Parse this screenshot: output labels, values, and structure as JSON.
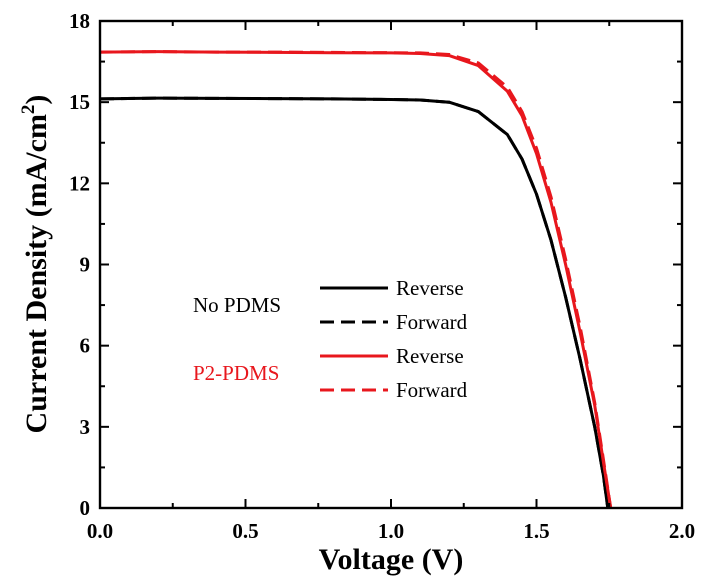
{
  "chart_data": {
    "type": "line",
    "xlabel": "Voltage (V)",
    "ylabel_main": "Current Density (mA/cm",
    "ylabel_sup": "2",
    "ylabel_close": ")",
    "xlim": [
      0.0,
      2.0
    ],
    "ylim": [
      0,
      18
    ],
    "xticks": [
      0.0,
      0.5,
      1.0,
      1.5,
      2.0
    ],
    "xtick_labels": [
      "0.0",
      "0.5",
      "1.0",
      "1.5",
      "2.0"
    ],
    "yticks": [
      0,
      3,
      6,
      9,
      12,
      15,
      18
    ],
    "ytick_labels": [
      "0",
      "3",
      "6",
      "9",
      "12",
      "15",
      "18"
    ],
    "grid": false,
    "legend": {
      "placement": "center",
      "groups": [
        {
          "label": "No PDMS",
          "color": "#000000"
        },
        {
          "label": "P2-PDMS",
          "color": "#e8171d"
        }
      ],
      "entries": [
        {
          "label": "Reverse",
          "color": "#000000",
          "dash": "solid"
        },
        {
          "label": "Forward",
          "color": "#000000",
          "dash": "dashed"
        },
        {
          "label": "Reverse",
          "color": "#e8171d",
          "dash": "solid"
        },
        {
          "label": "Forward",
          "color": "#e8171d",
          "dash": "dashed"
        }
      ]
    },
    "series": [
      {
        "group": "No PDMS",
        "mode": "Reverse",
        "color": "#000000",
        "dash": "solid",
        "x": [
          0.0,
          0.2,
          0.4,
          0.6,
          0.8,
          1.0,
          1.1,
          1.2,
          1.3,
          1.4,
          1.45,
          1.5,
          1.55,
          1.6,
          1.65,
          1.7,
          1.73,
          1.745
        ],
        "y": [
          15.12,
          15.15,
          15.14,
          15.13,
          15.12,
          15.1,
          15.08,
          15.0,
          14.65,
          13.8,
          12.9,
          11.6,
          9.9,
          7.8,
          5.5,
          3.0,
          1.2,
          0.0
        ]
      },
      {
        "group": "No PDMS",
        "mode": "Forward",
        "color": "#000000",
        "dash": "dashed",
        "x": [
          0.0,
          0.2,
          0.4,
          0.6,
          0.8,
          1.0,
          1.1,
          1.2,
          1.3,
          1.4,
          1.45,
          1.5,
          1.55,
          1.6,
          1.65,
          1.7,
          1.73,
          1.745
        ],
        "y": [
          15.12,
          15.15,
          15.14,
          15.13,
          15.12,
          15.1,
          15.08,
          15.0,
          14.65,
          13.8,
          12.9,
          11.6,
          9.9,
          7.8,
          5.5,
          3.0,
          1.2,
          0.0
        ]
      },
      {
        "group": "P2-PDMS",
        "mode": "Reverse",
        "color": "#e8171d",
        "dash": "solid",
        "x": [
          0.0,
          0.2,
          0.4,
          0.6,
          0.8,
          1.0,
          1.1,
          1.2,
          1.3,
          1.4,
          1.45,
          1.5,
          1.55,
          1.6,
          1.65,
          1.7,
          1.73,
          1.755
        ],
        "y": [
          16.85,
          16.87,
          16.85,
          16.84,
          16.83,
          16.82,
          16.8,
          16.72,
          16.35,
          15.4,
          14.5,
          13.1,
          11.3,
          9.0,
          6.5,
          3.8,
          1.7,
          0.0
        ]
      },
      {
        "group": "P2-PDMS",
        "mode": "Forward",
        "color": "#e8171d",
        "dash": "dashed",
        "x": [
          0.0,
          0.2,
          0.4,
          0.6,
          0.8,
          1.0,
          1.1,
          1.2,
          1.3,
          1.4,
          1.45,
          1.5,
          1.55,
          1.6,
          1.65,
          1.7,
          1.73,
          1.755
        ],
        "y": [
          16.85,
          16.87,
          16.85,
          16.85,
          16.84,
          16.83,
          16.82,
          16.76,
          16.45,
          15.55,
          14.65,
          13.3,
          11.5,
          9.2,
          6.7,
          3.9,
          1.8,
          0.0
        ]
      }
    ]
  }
}
